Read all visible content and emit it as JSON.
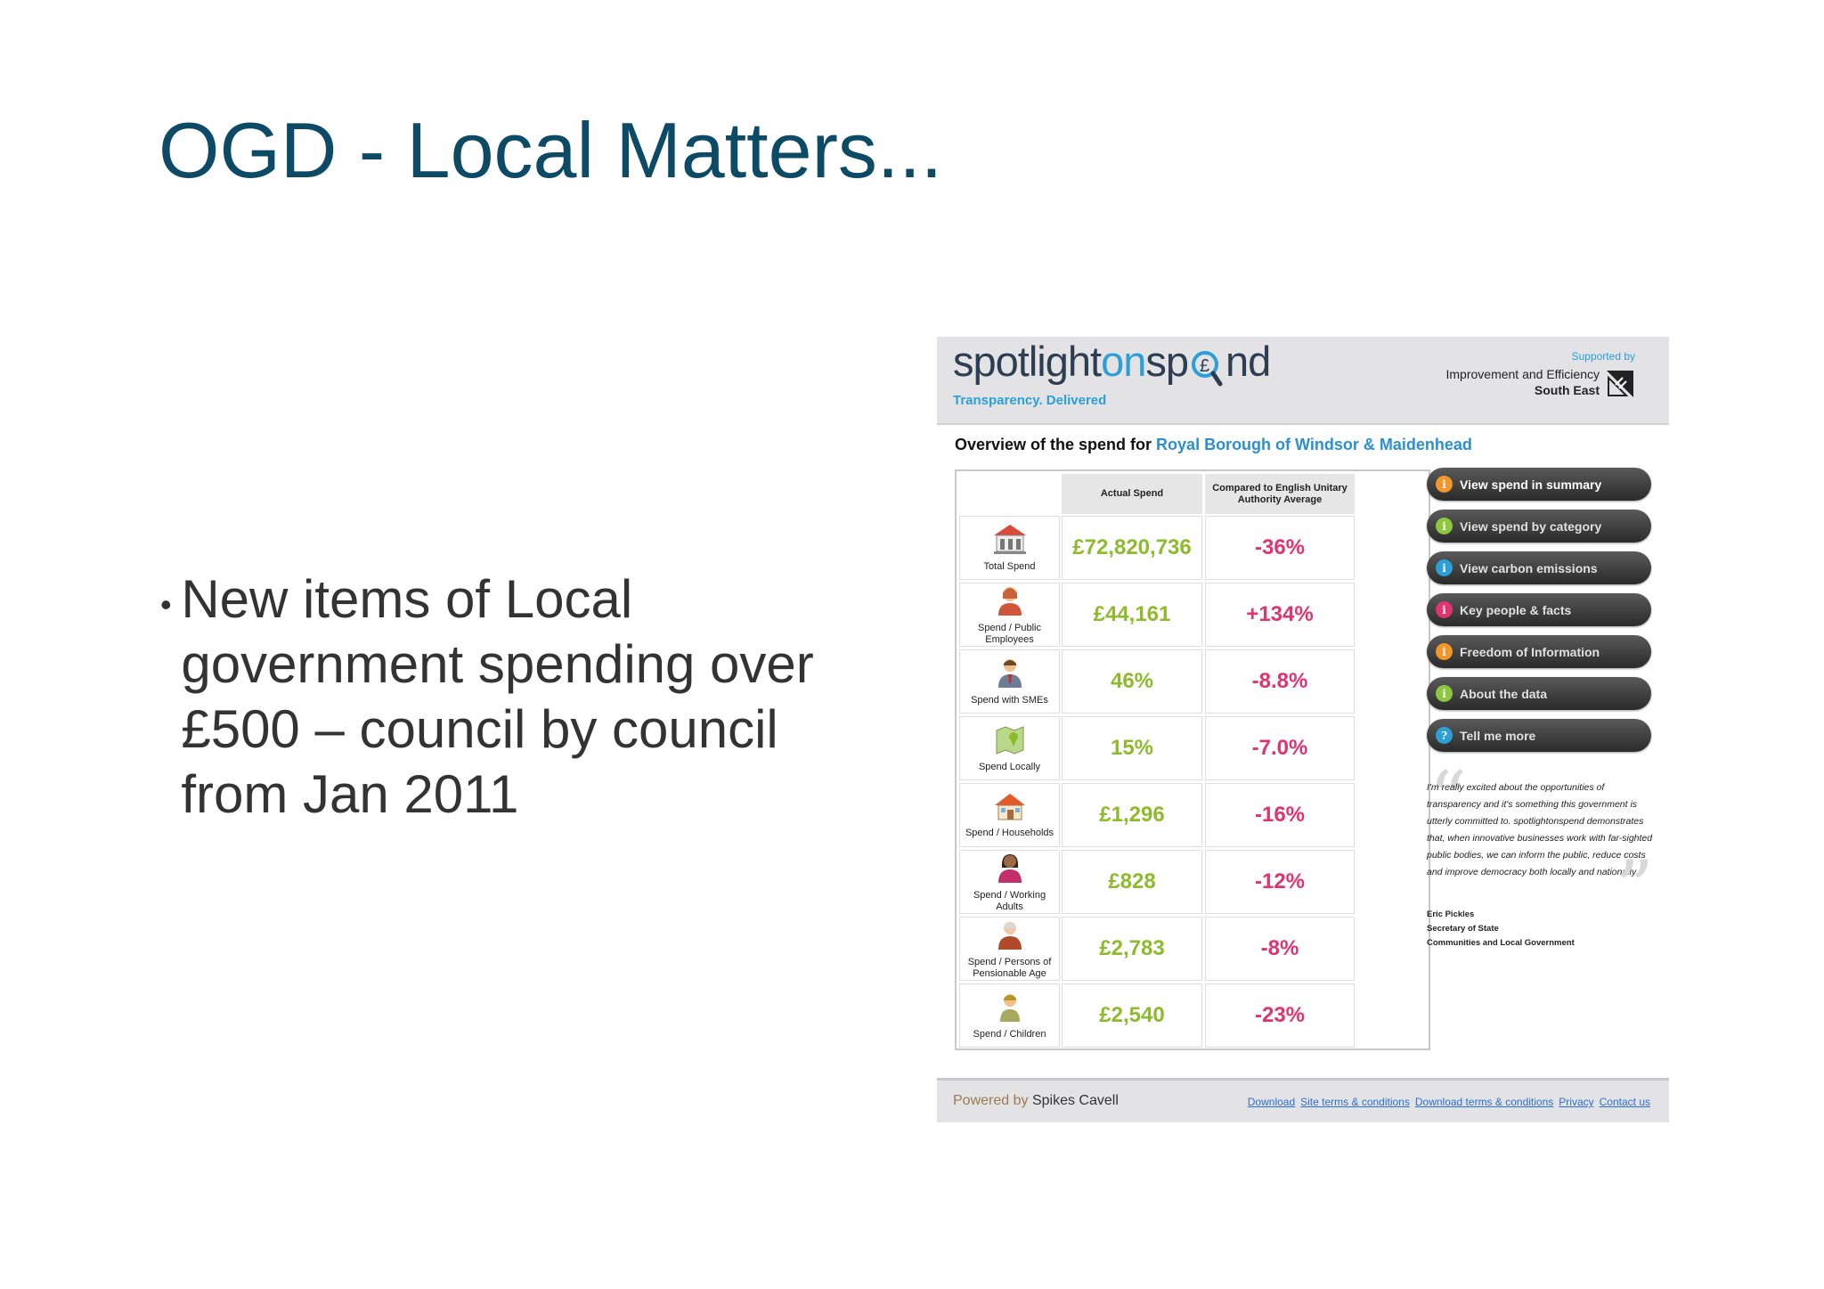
{
  "slide": {
    "title": "OGD - Local Matters...",
    "bullet_marker": "•",
    "bullet_text": "New items of Local government spending over £500 – council by council from Jan 2011"
  },
  "site": {
    "logo_part1": "spotlight",
    "logo_part2": "on",
    "logo_part3": "sp",
    "logo_part4": "nd",
    "logo_symbol": "£",
    "tagline": "Transparency. Delivered",
    "supported_by": "Supported by",
    "supporter_line1": "Improvement and Efficiency",
    "supporter_line2": "South East"
  },
  "overview": {
    "prefix": "Overview of the spend for ",
    "place": "Royal Borough of Windsor & Maidenhead"
  },
  "table": {
    "col_actual": "Actual Spend",
    "col_compared": "Compared to English Unitary Authority Average",
    "rows": [
      {
        "icon": "town-hall-icon",
        "label": "Total Spend",
        "actual": "£72,820,736",
        "compared": "-36%"
      },
      {
        "icon": "public-employee-icon",
        "label": "Spend / Public Employees",
        "actual": "£44,161",
        "compared": "+134%"
      },
      {
        "icon": "sme-businessman-icon",
        "label": "Spend with SMEs",
        "actual": "46%",
        "compared": "-8.8%"
      },
      {
        "icon": "local-map-icon",
        "label": "Spend Locally",
        "actual": "15%",
        "compared": "-7.0%"
      },
      {
        "icon": "house-icon",
        "label": "Spend / Households",
        "actual": "£1,296",
        "compared": "-16%"
      },
      {
        "icon": "working-adult-icon",
        "label": "Spend / Working Adults",
        "actual": "£828",
        "compared": "-12%"
      },
      {
        "icon": "pensioner-icon",
        "label": "Spend / Persons of Pensionable Age",
        "actual": "£2,783",
        "compared": "-8%"
      },
      {
        "icon": "child-icon",
        "label": "Spend / Children",
        "actual": "£2,540",
        "compared": "-23%"
      }
    ]
  },
  "nav": [
    {
      "label": "View spend in summary",
      "dot": "i",
      "color": "#f0962a",
      "active": true
    },
    {
      "label": "View spend by category",
      "dot": "i",
      "color": "#8dc63f",
      "active": false
    },
    {
      "label": "View carbon emissions",
      "dot": "i",
      "color": "#2b9fd6",
      "active": false
    },
    {
      "label": "Key people & facts",
      "dot": "i",
      "color": "#e0336f",
      "active": false
    },
    {
      "label": "Freedom of Information",
      "dot": "i",
      "color": "#f0962a",
      "active": false
    },
    {
      "label": "About the data",
      "dot": "i",
      "color": "#8dc63f",
      "active": false
    },
    {
      "label": "Tell me more",
      "dot": "?",
      "color": "#2b9fd6",
      "active": false
    }
  ],
  "quote": {
    "text": "I'm really excited about the opportunities of transparency and it's something this government is utterly committed to. spotlightonspend demonstrates that, when innovative businesses work with far-sighted public bodies, we can inform the public, reduce costs and improve democracy both locally and nationally.",
    "author_name": "Eric Pickles",
    "author_title": "Secretary of State",
    "author_dept": "Communities and Local Government"
  },
  "footer": {
    "powered_by": "Powered by ",
    "company": "Spikes Cavell",
    "links": [
      "Download",
      "Site terms & conditions",
      "Download terms & conditions",
      "Privacy",
      "Contact us"
    ]
  }
}
